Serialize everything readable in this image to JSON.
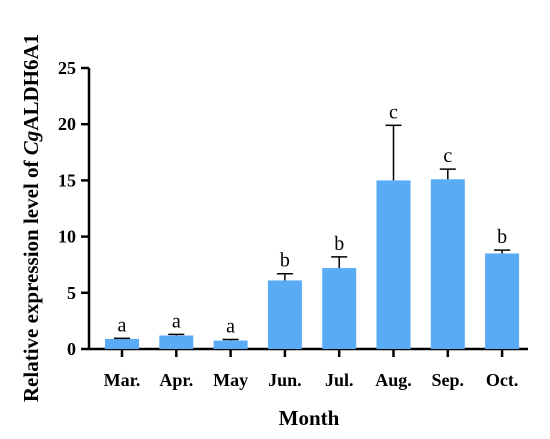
{
  "chart_data": {
    "type": "bar",
    "categories": [
      "Mar.",
      "Apr.",
      "May",
      "Jun.",
      "Jul.",
      "Aug.",
      "Sep.",
      "Oct."
    ],
    "values": [
      0.9,
      1.2,
      0.75,
      6.1,
      7.2,
      15.0,
      15.1,
      8.5
    ],
    "errors": [
      0.05,
      0.1,
      0.1,
      0.6,
      1.0,
      4.9,
      0.9,
      0.3
    ],
    "significance": [
      "a",
      "a",
      "a",
      "b",
      "b",
      "c",
      "c",
      "b"
    ],
    "xlabel": "Month",
    "ylabel_prefix": "Relative expression level of ",
    "ylabel_italic": "Cg",
    "ylabel_suffix": "ALDH6A1",
    "ylim": [
      0,
      25
    ],
    "yticks": [
      0,
      5,
      10,
      15,
      20,
      25
    ],
    "grid": false,
    "bar_color": "#5aabf5"
  }
}
